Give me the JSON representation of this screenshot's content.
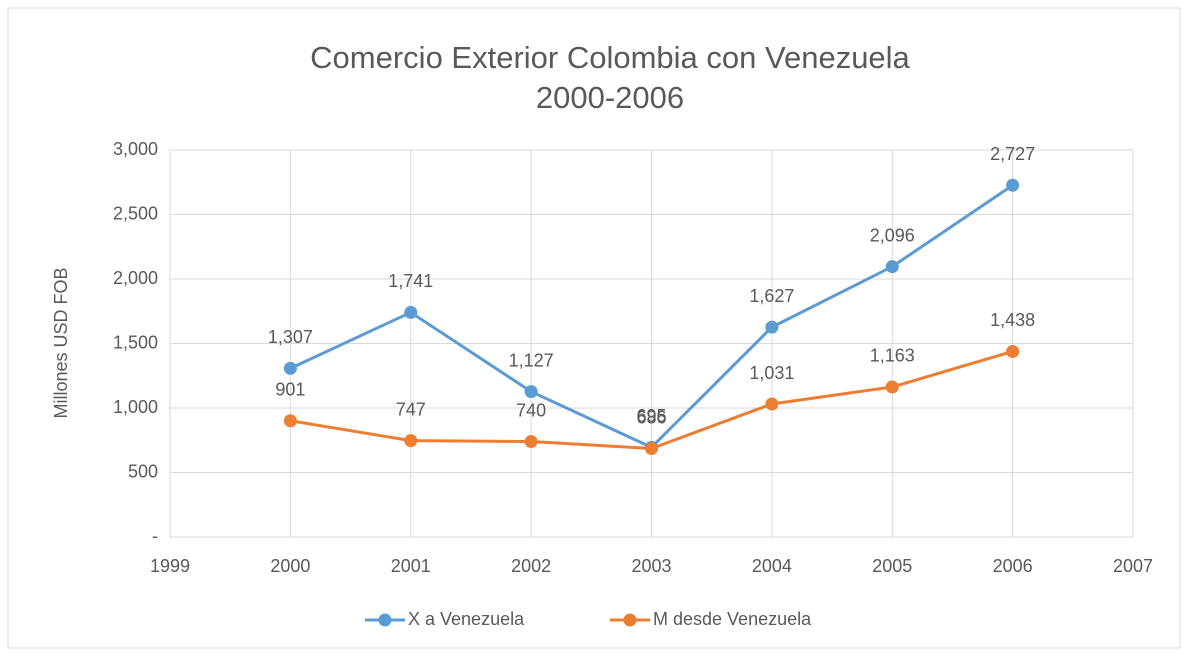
{
  "chart_data": {
    "type": "line",
    "title": [
      "Comercio Exterior Colombia con Venezuela",
      "2000-2006"
    ],
    "y_label": "Millones USD FOB",
    "x": [
      2000,
      2001,
      2002,
      2003,
      2004,
      2005,
      2006
    ],
    "series": [
      {
        "name": "X a Venezuela",
        "color": "#5b9bd5",
        "values": [
          1307,
          1741,
          1127,
          695,
          1627,
          2096,
          2727
        ],
        "value_labels": [
          "1,307",
          "1,741",
          "1,127",
          "695",
          "1,627",
          "2,096",
          "2,727"
        ]
      },
      {
        "name": "M desde Venezuela",
        "color": "#ed7d31",
        "values": [
          901,
          747,
          740,
          686,
          1031,
          1163,
          1438
        ],
        "value_labels": [
          "901",
          "747",
          "740",
          "686",
          "1,031",
          "1,163",
          "1,438"
        ]
      }
    ],
    "xlim": [
      1999,
      2007
    ],
    "xticks": [
      1999,
      2000,
      2001,
      2002,
      2003,
      2004,
      2005,
      2006,
      2007
    ],
    "ylim": [
      0,
      3000
    ],
    "yticks": [
      {
        "value": 0,
        "label": "-"
      },
      500,
      {
        "value": 1000,
        "label": "1,000"
      },
      {
        "value": 1500,
        "label": "1,500"
      },
      {
        "value": 2000,
        "label": "2,000"
      },
      {
        "value": 2500,
        "label": "2,500"
      },
      {
        "value": 3000,
        "label": "3,000"
      }
    ],
    "grid": true,
    "legend": "bottom"
  }
}
